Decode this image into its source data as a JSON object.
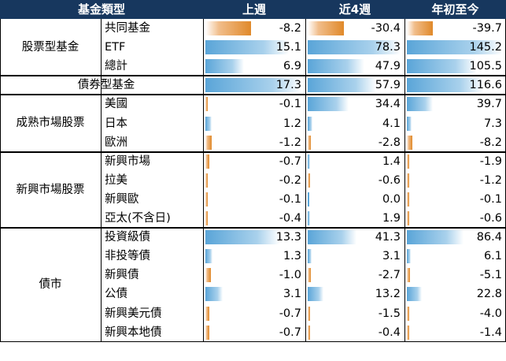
{
  "headers": {
    "category": "基金類型",
    "week": "上週",
    "month": "近4週",
    "ytd": "年初至今"
  },
  "groups": [
    {
      "label": "股票型基金",
      "rows": [
        {
          "name": "共同基金",
          "values": [
            -8.2,
            -30.4,
            -39.7
          ],
          "display": [
            "-8.2",
            "-30.4",
            "-39.7"
          ]
        },
        {
          "name": "ETF",
          "values": [
            15.1,
            78.3,
            145.2
          ],
          "display": [
            "15.1",
            "78.3",
            "145.2"
          ]
        },
        {
          "name": "總計",
          "values": [
            6.9,
            47.9,
            105.5
          ],
          "display": [
            "6.9",
            "47.9",
            "105.5"
          ]
        }
      ]
    },
    {
      "label": "債券型基金",
      "single": true,
      "rows": [
        {
          "name": "",
          "values": [
            17.3,
            57.9,
            116.6
          ],
          "display": [
            "17.3",
            "57.9",
            "116.6"
          ]
        }
      ]
    },
    {
      "label": "成熟市場股票",
      "rows": [
        {
          "name": "美國",
          "values": [
            -0.1,
            34.4,
            39.7
          ],
          "display": [
            "-0.1",
            "34.4",
            "39.7"
          ]
        },
        {
          "name": "日本",
          "values": [
            1.2,
            4.1,
            7.3
          ],
          "display": [
            "1.2",
            "4.1",
            "7.3"
          ]
        },
        {
          "name": "歐洲",
          "values": [
            -1.2,
            -2.8,
            -8.2
          ],
          "display": [
            "-1.2",
            "-2.8",
            "-8.2"
          ]
        }
      ]
    },
    {
      "label": "新興市場股票",
      "rows": [
        {
          "name": "新興市場",
          "values": [
            -0.7,
            1.4,
            -1.9
          ],
          "display": [
            "-0.7",
            "1.4",
            "-1.9"
          ]
        },
        {
          "name": "拉美",
          "values": [
            -0.2,
            -0.6,
            -1.2
          ],
          "display": [
            "-0.2",
            "-0.6",
            "-1.2"
          ]
        },
        {
          "name": "新興歐",
          "values": [
            -0.1,
            0.0,
            -0.1
          ],
          "display": [
            "-0.1",
            "0.0",
            "-0.1"
          ]
        },
        {
          "name": "亞太(不含日)",
          "values": [
            -0.4,
            1.9,
            -0.6
          ],
          "display": [
            "-0.4",
            "1.9",
            "-0.6"
          ]
        }
      ]
    },
    {
      "label": "債市",
      "rows": [
        {
          "name": "投資級債",
          "values": [
            13.3,
            41.3,
            86.4
          ],
          "display": [
            "13.3",
            "41.3",
            "86.4"
          ]
        },
        {
          "name": "非投等債",
          "values": [
            1.3,
            3.1,
            6.1
          ],
          "display": [
            "1.3",
            "3.1",
            "6.1"
          ]
        },
        {
          "name": "新興債",
          "values": [
            -1.0,
            -2.7,
            -5.1
          ],
          "display": [
            "-1.0",
            "-2.7",
            "-5.1"
          ]
        },
        {
          "name": "公債",
          "values": [
            3.1,
            13.2,
            22.8
          ],
          "display": [
            "3.1",
            "13.2",
            "22.8"
          ]
        },
        {
          "name": "新興美元債",
          "values": [
            -0.7,
            -1.5,
            -4.0
          ],
          "display": [
            "-0.7",
            "-1.5",
            "-4.0"
          ]
        },
        {
          "name": "新興本地債",
          "values": [
            -0.7,
            -0.4,
            -1.4
          ],
          "display": [
            "-0.7",
            "-0.4",
            "-1.4"
          ]
        }
      ]
    }
  ],
  "colors": {
    "header_bg": "#17375e",
    "positive_bar": "#5aa5d8",
    "negative_bar": "#e0892a"
  }
}
